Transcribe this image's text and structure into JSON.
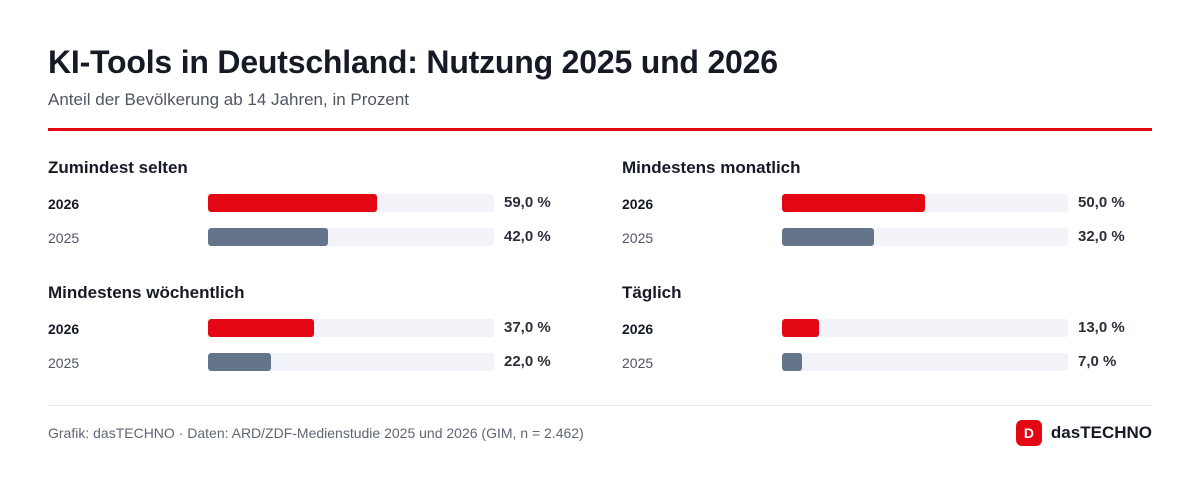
{
  "header": {
    "title": "KI-Tools in Deutschland: Nutzung 2025 und 2026",
    "subtitle": "Anteil der Bevölkerung ab 14 Jahren, in Prozent"
  },
  "colors": {
    "accent": "#e30613",
    "secondary": "#64748b",
    "track": "#f1f3f8"
  },
  "chart_data": [
    {
      "type": "bar",
      "title": "Zumindest selten",
      "categories": [
        "2026",
        "2025"
      ],
      "values": [
        59.0,
        42.0
      ],
      "value_labels": [
        "59,0 %",
        "42,0 %"
      ],
      "xlim": [
        0,
        100
      ]
    },
    {
      "type": "bar",
      "title": "Mindestens monatlich",
      "categories": [
        "2026",
        "2025"
      ],
      "values": [
        50.0,
        32.0
      ],
      "value_labels": [
        "50,0 %",
        "32,0 %"
      ],
      "xlim": [
        0,
        100
      ]
    },
    {
      "type": "bar",
      "title": "Mindestens wöchentlich",
      "categories": [
        "2026",
        "2025"
      ],
      "values": [
        37.0,
        22.0
      ],
      "value_labels": [
        "37,0 %",
        "22,0 %"
      ],
      "xlim": [
        0,
        100
      ]
    },
    {
      "type": "bar",
      "title": "Täglich",
      "categories": [
        "2026",
        "2025"
      ],
      "values": [
        13.0,
        7.0
      ],
      "value_labels": [
        "13,0 %",
        "7,0 %"
      ],
      "xlim": [
        0,
        100
      ]
    }
  ],
  "footer": {
    "source": "Grafik: dasTECHNO · Daten: ARD/ZDF-Medienstudie 2025 und 2026 (GIM, n = 2.462)",
    "brand_letter": "D",
    "brand_name": "dasTECHNO"
  }
}
